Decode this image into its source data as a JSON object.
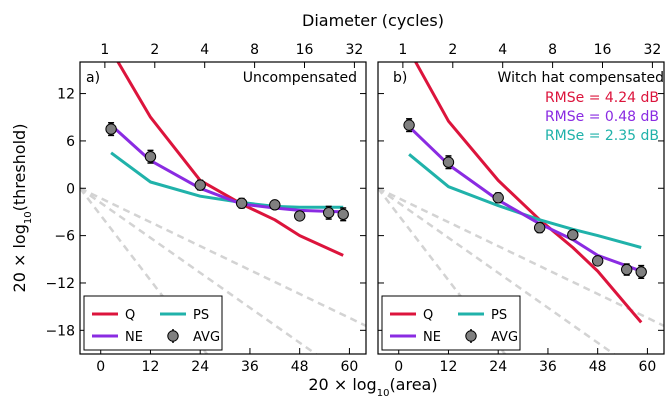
{
  "figure": {
    "top_axis_label": "Diameter (cycles)",
    "x_axis_label": "20 × log10(area)",
    "y_axis_label": "20 × log10(threshold)",
    "top_ticks": [
      "1",
      "2",
      "4",
      "8",
      "16",
      "32"
    ]
  },
  "colors": {
    "Q": "#dc143c",
    "NE": "#8a2be2",
    "PS": "#20b2aa",
    "AVG": "#808080",
    "ref": "#d3d3d3"
  },
  "legend": [
    "Q",
    "PS",
    "NE",
    "AVG"
  ],
  "chart_data": [
    {
      "type": "line",
      "panel_label": "a)",
      "title": "Uncompensated",
      "xlabel": "20 × log10(area)",
      "ylabel": "20 × log10(threshold)",
      "xlim": [
        -5,
        64
      ],
      "ylim": [
        -21,
        16
      ],
      "xticks": [
        0,
        12,
        24,
        36,
        48,
        60
      ],
      "yticks": [
        -18,
        -12,
        -6,
        0,
        6,
        12
      ],
      "top_axis": {
        "label": "Diameter (cycles)",
        "ticks": [
          "1",
          "2",
          "4",
          "8",
          "16",
          "32"
        ]
      },
      "grid": false,
      "legend_position": "lower-left",
      "rmse": [],
      "series": [
        {
          "name": "Q",
          "x": [
            2.5,
            12,
            24,
            34,
            42,
            48,
            58.5
          ],
          "y": [
            17.5,
            9,
            1,
            -2,
            -4,
            -6,
            -8.5
          ]
        },
        {
          "name": "NE",
          "x": [
            2.5,
            12,
            24,
            34,
            42,
            48,
            58.5
          ],
          "y": [
            8,
            3.5,
            0,
            -2,
            -2.5,
            -2.8,
            -3
          ]
        },
        {
          "name": "PS",
          "x": [
            2.5,
            12,
            24,
            34,
            42,
            48,
            58.5
          ],
          "y": [
            4.5,
            0.8,
            -1,
            -1.8,
            -2.3,
            -2.4,
            -2.4
          ]
        },
        {
          "name": "AVG",
          "x": [
            2.5,
            12,
            24,
            34,
            42,
            48,
            55,
            58.5
          ],
          "y": [
            7.5,
            4,
            0.4,
            -1.9,
            -2.1,
            -3.5,
            -3.1,
            -3.3
          ],
          "err": [
            0.8,
            0.8,
            0.6,
            0.6,
            0.5,
            0.5,
            0.8,
            0.8
          ]
        }
      ],
      "reference_lines": [
        {
          "x": [
            -5,
            30
          ],
          "y": [
            0,
            -24
          ]
        },
        {
          "x": [
            -5,
            60
          ],
          "y": [
            0,
            -24
          ]
        },
        {
          "x": [
            -5,
            90
          ],
          "y": [
            0,
            -24
          ]
        }
      ]
    },
    {
      "type": "line",
      "panel_label": "b)",
      "title": "Witch hat compensated",
      "xlabel": "20 × log10(area)",
      "ylabel": "",
      "xlim": [
        -5,
        64
      ],
      "ylim": [
        -21,
        16
      ],
      "xticks": [
        0,
        12,
        24,
        36,
        48,
        60
      ],
      "yticks": [
        -18,
        -12,
        -6,
        0,
        6,
        12
      ],
      "top_axis": {
        "label": "Diameter (cycles)",
        "ticks": [
          "1",
          "2",
          "4",
          "8",
          "16",
          "32"
        ]
      },
      "grid": false,
      "legend_position": "lower-left",
      "rmse": [
        {
          "series": "Q",
          "text": "RMSe = 4.24 dB"
        },
        {
          "series": "NE",
          "text": "RMSe = 0.48 dB"
        },
        {
          "series": "PS",
          "text": "RMSe = 2.35 dB"
        }
      ],
      "series": [
        {
          "name": "Q",
          "x": [
            2.5,
            12,
            24,
            34,
            42,
            48,
            58.5
          ],
          "y": [
            17.5,
            8.5,
            1,
            -4,
            -7.5,
            -10.5,
            -17
          ]
        },
        {
          "name": "NE",
          "x": [
            2.5,
            12,
            24,
            34,
            42,
            48,
            58.5
          ],
          "y": [
            7.8,
            3,
            -1.5,
            -4.5,
            -6.5,
            -8.5,
            -10.5
          ]
        },
        {
          "name": "PS",
          "x": [
            2.5,
            12,
            24,
            34,
            42,
            48,
            58.5
          ],
          "y": [
            4.3,
            0.2,
            -2.2,
            -4,
            -5.2,
            -6,
            -7.5
          ]
        },
        {
          "name": "AVG",
          "x": [
            2.5,
            12,
            24,
            34,
            42,
            48,
            55,
            58.5
          ],
          "y": [
            8,
            3.3,
            -1.2,
            -5,
            -5.9,
            -9.2,
            -10.3,
            -10.6
          ],
          "err": [
            0.8,
            0.8,
            0.6,
            0.6,
            0.5,
            0.5,
            0.7,
            0.8
          ]
        }
      ],
      "reference_lines": [
        {
          "x": [
            -5,
            30
          ],
          "y": [
            0,
            -24
          ]
        },
        {
          "x": [
            -5,
            60
          ],
          "y": [
            0,
            -24
          ]
        },
        {
          "x": [
            -5,
            90
          ],
          "y": [
            0,
            -24
          ]
        }
      ]
    }
  ]
}
